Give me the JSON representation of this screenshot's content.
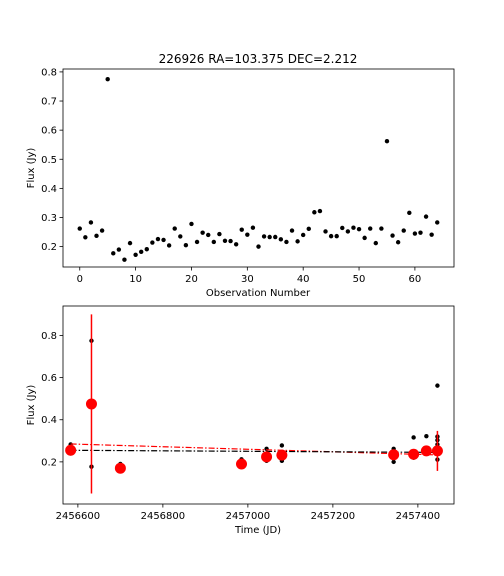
{
  "chart_data": [
    {
      "type": "scatter",
      "title": "226926 RA=103.375 DEC=2.212",
      "xlabel": "Observation Number",
      "ylabel": "Flux (Jy)",
      "xlim": [
        -3,
        67
      ],
      "ylim": [
        0.13,
        0.81
      ],
      "xticks": [
        0,
        10,
        20,
        30,
        40,
        50,
        60
      ],
      "yticks": [
        0.2,
        0.3,
        0.4,
        0.5,
        0.6,
        0.7,
        0.8
      ],
      "grid": false,
      "legend": "none",
      "colors": {
        "points": "#000000"
      },
      "series": [
        {
          "x": [
            0,
            1,
            2,
            3,
            4,
            5,
            6,
            7,
            8,
            9,
            10,
            11,
            12,
            13,
            14,
            15,
            16,
            17,
            18,
            19,
            20,
            21,
            22,
            23,
            24,
            25,
            26,
            27,
            28,
            29,
            30,
            31,
            32,
            33,
            34,
            35,
            36,
            37,
            38,
            39,
            40,
            41,
            42,
            43,
            44,
            45,
            46,
            47,
            48,
            49,
            50,
            51,
            52,
            53,
            54,
            55,
            56,
            57,
            58,
            59,
            60,
            61,
            62,
            63,
            64
          ],
          "y": [
            0.262,
            0.232,
            0.283,
            0.237,
            0.255,
            0.775,
            0.177,
            0.19,
            0.155,
            0.212,
            0.172,
            0.182,
            0.191,
            0.214,
            0.226,
            0.223,
            0.204,
            0.262,
            0.235,
            0.205,
            0.278,
            0.216,
            0.248,
            0.24,
            0.216,
            0.243,
            0.22,
            0.219,
            0.208,
            0.258,
            0.241,
            0.265,
            0.2,
            0.235,
            0.233,
            0.233,
            0.225,
            0.216,
            0.255,
            0.218,
            0.24,
            0.261,
            0.318,
            0.322,
            0.252,
            0.236,
            0.236,
            0.264,
            0.252,
            0.265,
            0.26,
            0.23,
            0.262,
            0.212,
            0.262,
            0.562,
            0.238,
            0.215,
            0.255,
            0.316,
            0.245,
            0.248,
            0.303,
            0.241,
            0.283
          ]
        }
      ]
    },
    {
      "type": "scatter",
      "title": "",
      "xlabel": "Time (JD)",
      "ylabel": "Flux (Jy)",
      "xlim": [
        2456565,
        2457485
      ],
      "ylim": [
        0.0,
        0.94
      ],
      "xticks": [
        2456600,
        2456800,
        2457000,
        2457200,
        2457400
      ],
      "yticks": [
        0.2,
        0.4,
        0.6,
        0.8
      ],
      "grid": false,
      "legend": "none",
      "colors": {
        "points": "#000000",
        "binned": "#ff0000",
        "fit_red": "#ff0000",
        "fit_black": "#000000"
      },
      "series": [
        {
          "x": [
            2456583,
            2456583,
            2456583,
            2456583,
            2456632,
            2456632,
            2456632,
            2456700,
            2456700,
            2456700,
            2456985,
            2456985,
            2456985,
            2457044,
            2457044,
            2457044,
            2457044,
            2457080,
            2457080,
            2457080,
            2457080,
            2457343,
            2457343,
            2457343,
            2457343,
            2457343,
            2457390,
            2457390,
            2457390,
            2457390,
            2457420,
            2457420,
            2457446,
            2457446,
            2457446,
            2457446,
            2457446,
            2457446,
            2457446
          ],
          "y": [
            0.262,
            0.24,
            0.283,
            0.255,
            0.775,
            0.177,
            0.47,
            0.19,
            0.155,
            0.175,
            0.212,
            0.182,
            0.195,
            0.233,
            0.262,
            0.205,
            0.22,
            0.216,
            0.278,
            0.205,
            0.24,
            0.262,
            0.24,
            0.2,
            0.225,
            0.25,
            0.316,
            0.236,
            0.22,
            0.245,
            0.322,
            0.24,
            0.562,
            0.303,
            0.32,
            0.283,
            0.262,
            0.241,
            0.211
          ]
        },
        {
          "name": "",
          "x": [
            2456583,
            2456632,
            2456700,
            2456985,
            2457044,
            2457080,
            2457343,
            2457390,
            2457420,
            2457446
          ],
          "y": [
            0.255,
            0.475,
            0.17,
            0.19,
            0.224,
            0.232,
            0.234,
            0.236,
            0.252,
            0.252
          ],
          "err": [
            0.0,
            0.425,
            0.0,
            0.0,
            0.0,
            0.0,
            0.0,
            0.0,
            0.0,
            0.095
          ]
        }
      ],
      "fit_lines": [
        {
          "x": [
            2456583,
            2457446
          ],
          "y": [
            0.285,
            0.233
          ],
          "style": "dash-dot",
          "color": "#ff0000"
        },
        {
          "x": [
            2456583,
            2457446
          ],
          "y": [
            0.255,
            0.245
          ],
          "style": "dash-dot",
          "color": "#000000"
        }
      ]
    }
  ]
}
